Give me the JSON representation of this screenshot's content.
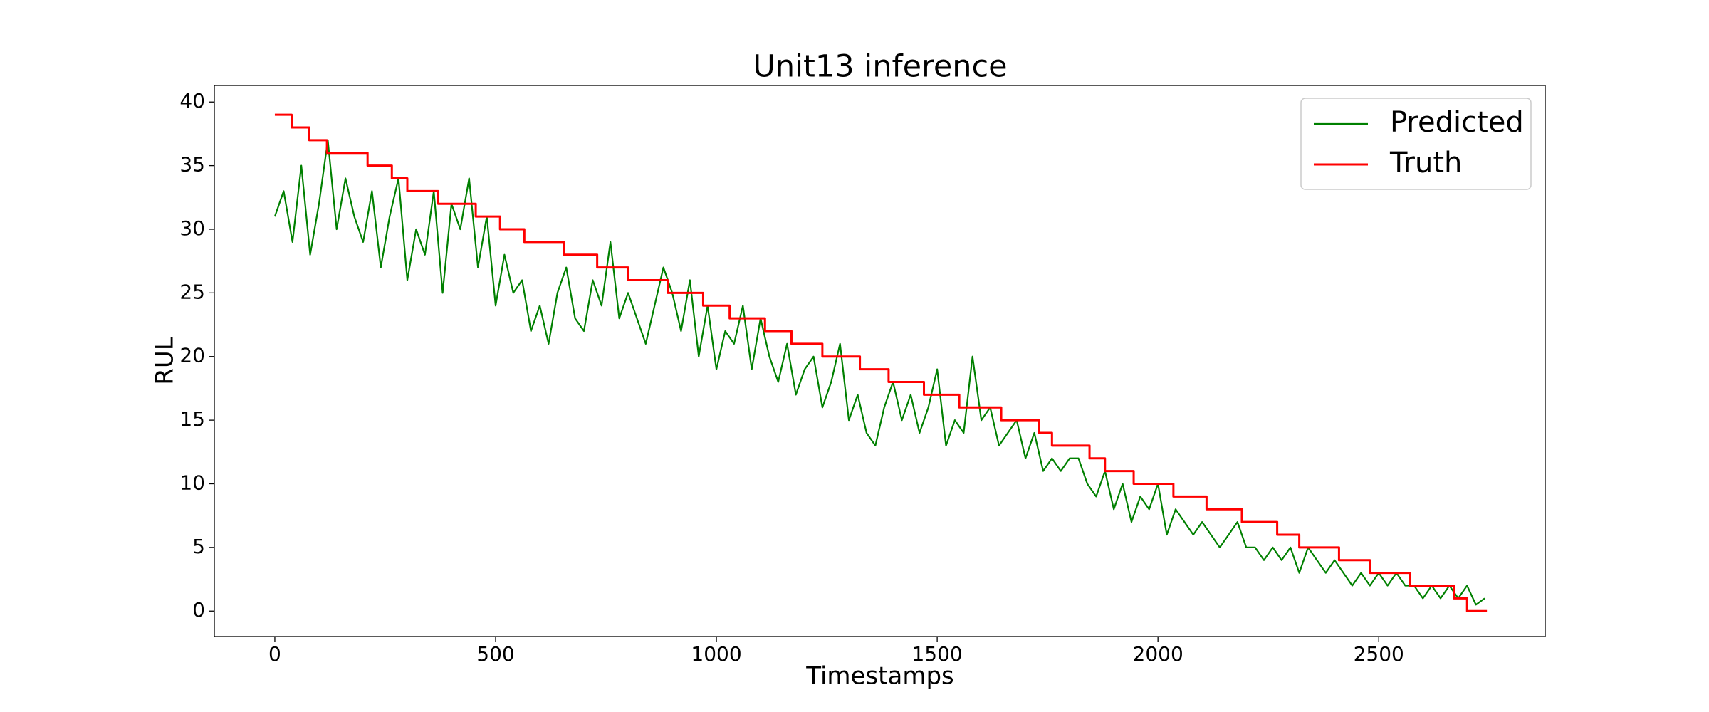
{
  "chart_data": {
    "type": "line",
    "title": "Unit13 inference",
    "xlabel": "Timestamps",
    "ylabel": "RUL",
    "xlim": [
      -137,
      2877
    ],
    "ylim": [
      -2,
      41.3
    ],
    "xticks": [
      0,
      500,
      1000,
      1500,
      2000,
      2500
    ],
    "yticks": [
      0,
      5,
      10,
      15,
      20,
      25,
      30,
      35,
      40
    ],
    "legend": "upper right",
    "grid": false,
    "series": [
      {
        "name": "Predicted",
        "color": "#008000",
        "step": false,
        "x": [
          0,
          20,
          40,
          60,
          80,
          100,
          120,
          140,
          160,
          180,
          200,
          220,
          240,
          260,
          280,
          300,
          320,
          340,
          360,
          380,
          400,
          420,
          440,
          460,
          480,
          500,
          520,
          540,
          560,
          580,
          600,
          620,
          640,
          660,
          680,
          700,
          720,
          740,
          760,
          780,
          800,
          820,
          840,
          860,
          880,
          900,
          920,
          940,
          960,
          980,
          1000,
          1020,
          1040,
          1060,
          1080,
          1100,
          1120,
          1140,
          1160,
          1180,
          1200,
          1220,
          1240,
          1260,
          1280,
          1300,
          1320,
          1340,
          1360,
          1380,
          1400,
          1420,
          1440,
          1460,
          1480,
          1500,
          1520,
          1540,
          1560,
          1580,
          1600,
          1620,
          1640,
          1660,
          1680,
          1700,
          1720,
          1740,
          1760,
          1780,
          1800,
          1820,
          1840,
          1860,
          1880,
          1900,
          1920,
          1940,
          1960,
          1980,
          2000,
          2020,
          2040,
          2060,
          2080,
          2100,
          2120,
          2140,
          2160,
          2180,
          2200,
          2220,
          2240,
          2260,
          2280,
          2300,
          2320,
          2340,
          2360,
          2380,
          2400,
          2420,
          2440,
          2460,
          2480,
          2500,
          2520,
          2540,
          2560,
          2580,
          2600,
          2620,
          2640,
          2660,
          2680,
          2700,
          2720,
          2740
        ],
        "values": [
          31,
          33,
          29,
          35,
          28,
          32,
          37,
          30,
          34,
          31,
          29,
          33,
          27,
          31,
          34,
          26,
          30,
          28,
          33,
          25,
          32,
          30,
          34,
          27,
          31,
          24,
          28,
          25,
          26,
          22,
          24,
          21,
          25,
          27,
          23,
          22,
          26,
          24,
          29,
          23,
          25,
          23,
          21,
          24,
          27,
          25,
          22,
          26,
          20,
          24,
          19,
          22,
          21,
          24,
          19,
          23,
          20,
          18,
          21,
          17,
          19,
          20,
          16,
          18,
          21,
          15,
          17,
          14,
          13,
          16,
          18,
          15,
          17,
          14,
          16,
          19,
          13,
          15,
          14,
          20,
          15,
          16,
          13,
          14,
          15,
          12,
          14,
          11,
          12,
          11,
          12,
          12,
          10,
          9,
          11,
          8,
          10,
          7,
          9,
          8,
          10,
          6,
          8,
          7,
          6,
          7,
          6,
          5,
          6,
          7,
          5,
          5,
          4,
          5,
          4,
          5,
          3,
          5,
          4,
          3,
          4,
          3,
          2,
          3,
          2,
          3,
          2,
          3,
          2,
          2,
          1,
          2,
          1,
          2,
          1,
          2,
          0.5,
          1
        ]
      },
      {
        "name": "Truth",
        "color": "#ff0000",
        "step": true,
        "x": [
          0,
          38,
          78,
          118,
          210,
          265,
          300,
          370,
          455,
          510,
          565,
          655,
          730,
          800,
          890,
          970,
          1030,
          1110,
          1170,
          1240,
          1325,
          1390,
          1470,
          1550,
          1645,
          1730,
          1760,
          1845,
          1880,
          1945,
          2035,
          2110,
          2190,
          2270,
          2320,
          2410,
          2480,
          2570,
          2670,
          2700,
          2745
        ],
        "values": [
          39,
          38,
          37,
          36,
          35,
          34,
          33,
          32,
          31,
          30,
          29,
          28,
          27,
          26,
          25,
          24,
          23,
          22,
          21,
          20,
          19,
          18,
          17,
          16,
          15,
          14,
          13,
          12,
          11,
          10,
          9,
          8,
          7,
          6,
          5,
          4,
          3,
          2,
          1,
          0,
          0
        ]
      }
    ]
  }
}
